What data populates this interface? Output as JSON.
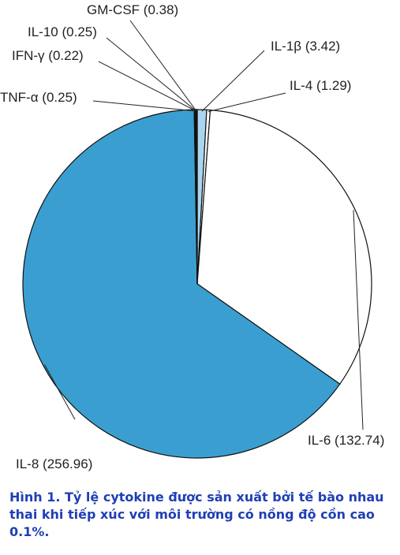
{
  "chart_data": {
    "type": "pie",
    "categories": [
      "IL-1β",
      "IL-4",
      "IL-6",
      "IL-8",
      "TNF-α",
      "IFN-γ",
      "IL-10",
      "GM-CSF"
    ],
    "values": [
      3.42,
      1.29,
      132.74,
      256.96,
      0.25,
      0.22,
      0.25,
      0.38
    ],
    "value_labels": [
      "(3.42)",
      "(1.29)",
      "(132.74)",
      "(256.96)",
      "(0.25)",
      "(0.22)",
      "(0.25)",
      "(0.38)"
    ],
    "colors": [
      "#a9d6ee",
      "#ffffff",
      "#ffffff",
      "#3a9fd0",
      "#111111",
      "#111111",
      "#111111",
      "#111111"
    ],
    "caption": "Hình 1. Tỷ lệ cytokine được sản xuất bởi tế bào nhau thai khi tiếp xúc với môi trường có nồng độ cồn cao 0.1%."
  }
}
